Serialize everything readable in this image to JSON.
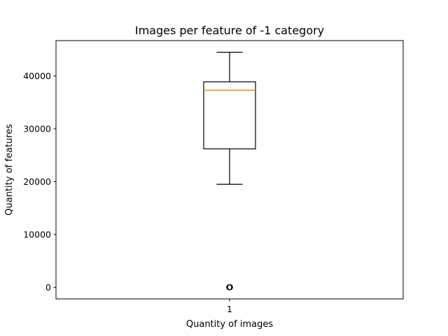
{
  "chart_data": {
    "type": "box",
    "title": "Images per feature of -1 category",
    "xlabel": "Quantity of images",
    "ylabel": "Quantity of features",
    "categories": [
      "1"
    ],
    "ylim": [
      -2200,
      46700
    ],
    "yticks": [
      0,
      10000,
      20000,
      30000,
      40000
    ],
    "ytick_labels": [
      "0",
      "10000",
      "20000",
      "30000",
      "40000"
    ],
    "boxes": [
      {
        "label": "1",
        "whisker_low": 19500,
        "q1": 26200,
        "median": 37300,
        "q3": 38900,
        "whisker_high": 44500,
        "outliers": [
          0,
          0,
          0
        ]
      }
    ],
    "grid": false,
    "colors": {
      "box": "#000000",
      "median": "#ff7f0e",
      "outlier": "#000000"
    }
  }
}
